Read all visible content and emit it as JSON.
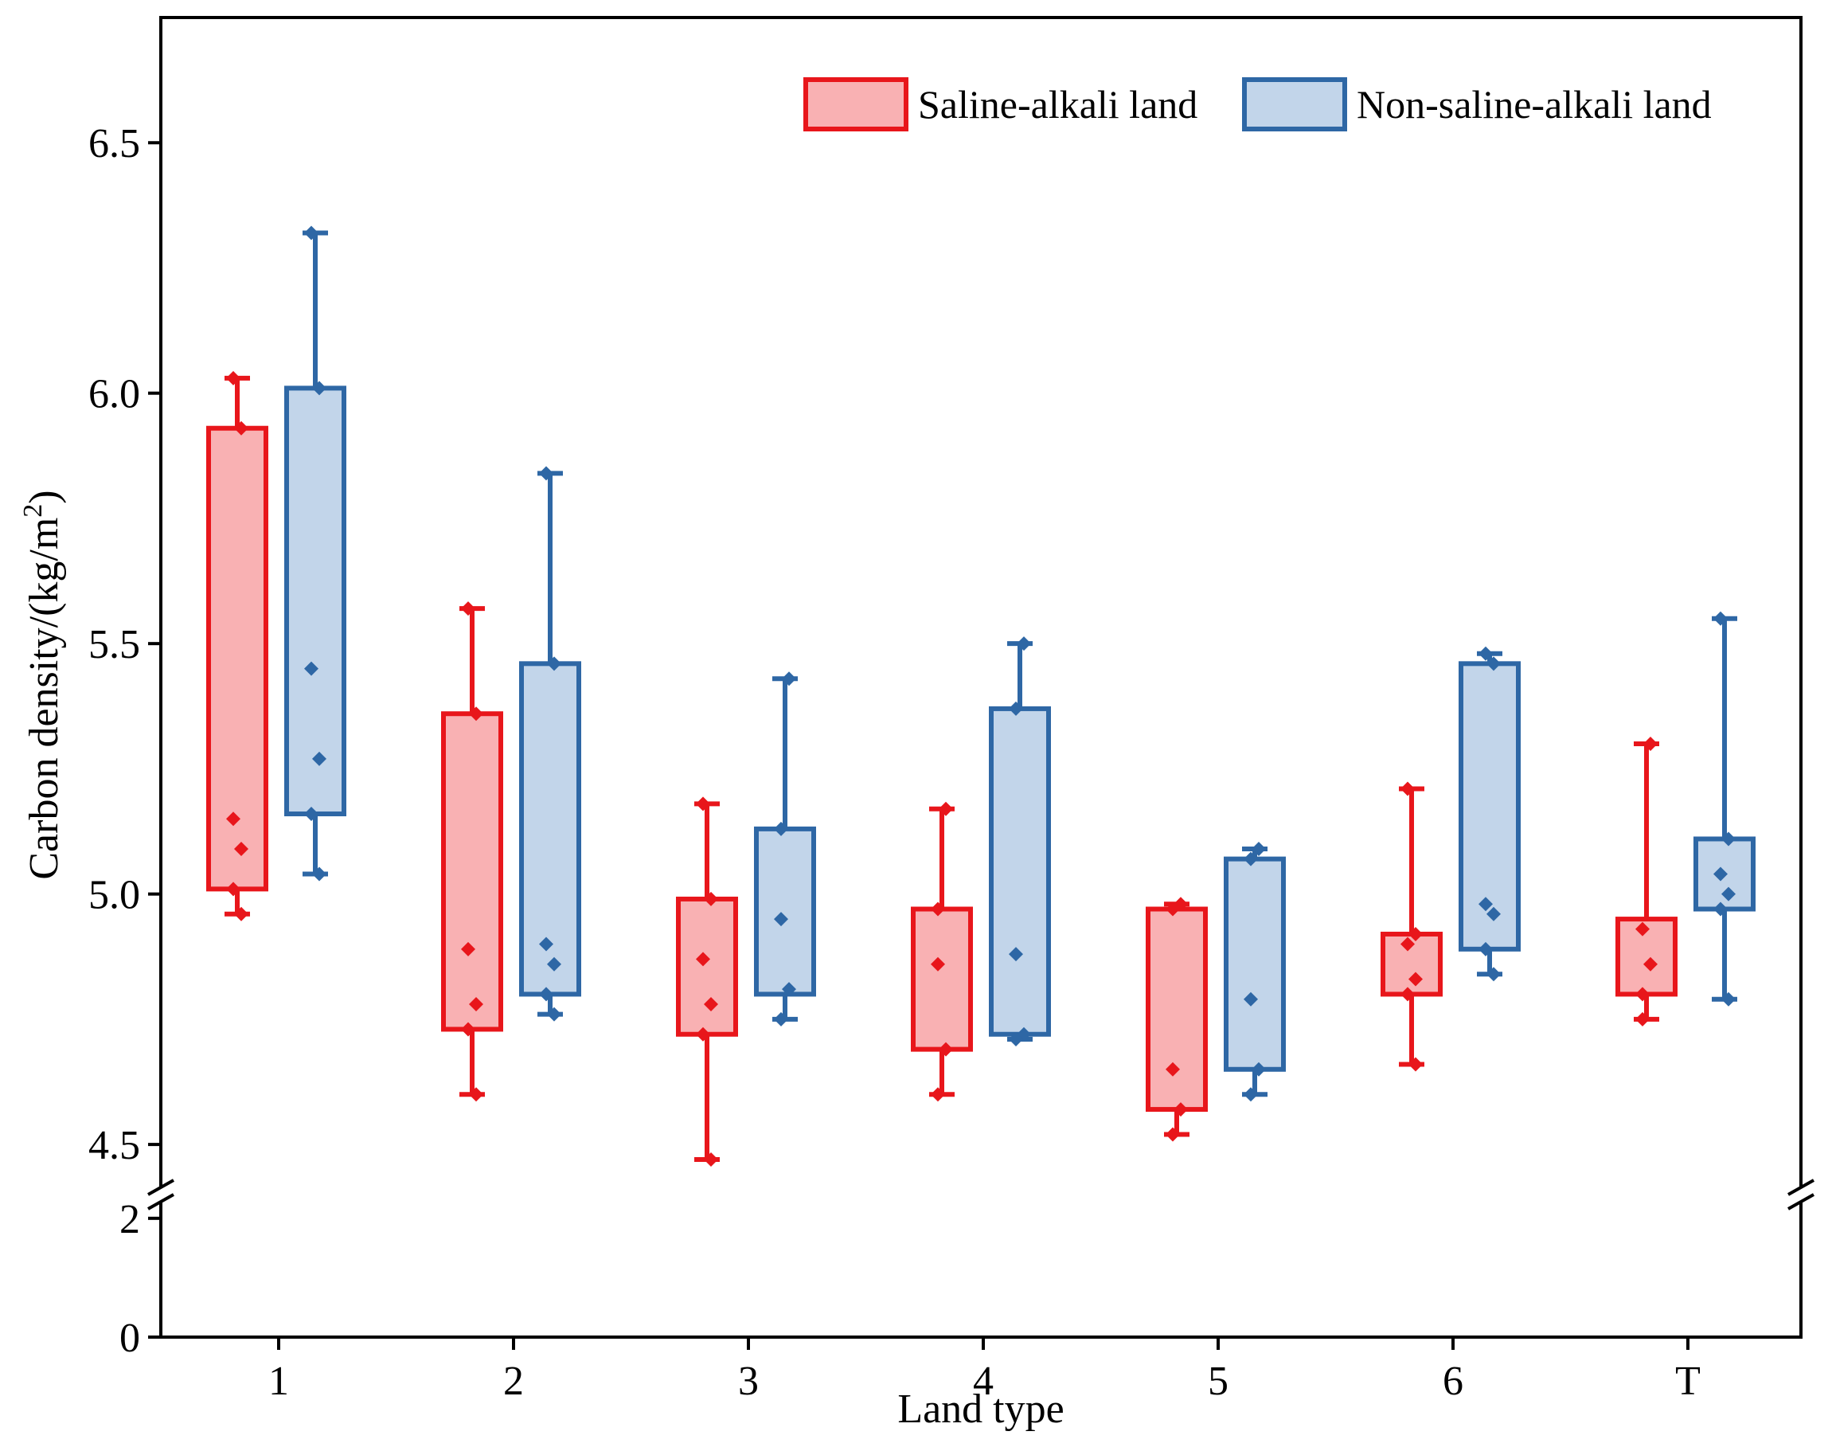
{
  "chart_data": {
    "type": "box",
    "xlabel": "Land type",
    "ylabel": "Carbon density/(kg/m",
    "ylabel_superscript": "2",
    "ylabel_suffix": ")",
    "categories": [
      "1",
      "2",
      "3",
      "4",
      "5",
      "6",
      "T"
    ],
    "y_ticks_upper": [
      "4.5",
      "5.0",
      "5.5",
      "6.0",
      "6.5"
    ],
    "y_ticks_lower": [
      "0",
      "2"
    ],
    "ylim_upper": [
      4.4,
      6.75
    ],
    "ylim_lower": [
      0,
      2.4
    ],
    "axis_break": true,
    "legend_position": "top-right",
    "series": [
      {
        "name": "Saline-alkali land",
        "color": "#e8161b",
        "fill": "#f9b1b3",
        "boxes": [
          {
            "min": 4.96,
            "q1": 5.01,
            "q3": 5.93,
            "max": 6.03,
            "points": [
              5.15,
              5.09,
              5.01,
              5.93,
              6.03,
              4.96
            ]
          },
          {
            "min": 4.6,
            "q1": 4.73,
            "q3": 5.36,
            "max": 5.57,
            "points": [
              4.89,
              4.78,
              4.73,
              5.36,
              5.57,
              4.6
            ]
          },
          {
            "min": 4.47,
            "q1": 4.72,
            "q3": 4.99,
            "max": 5.18,
            "points": [
              4.87,
              4.78,
              4.72,
              4.99,
              5.18,
              4.47
            ]
          },
          {
            "min": 4.6,
            "q1": 4.69,
            "q3": 4.97,
            "max": 5.17,
            "points": [
              4.86,
              4.69,
              4.97,
              5.17,
              4.6
            ]
          },
          {
            "min": 4.52,
            "q1": 4.57,
            "q3": 4.97,
            "max": 4.98,
            "points": [
              4.65,
              4.57,
              4.97,
              4.98,
              4.52
            ]
          },
          {
            "min": 4.66,
            "q1": 4.8,
            "q3": 4.92,
            "max": 5.21,
            "points": [
              4.9,
              4.83,
              4.8,
              4.92,
              5.21,
              4.66
            ]
          },
          {
            "min": 4.75,
            "q1": 4.8,
            "q3": 4.95,
            "max": 5.3,
            "points": [
              4.93,
              4.86,
              4.8,
              5.3,
              4.75
            ]
          }
        ]
      },
      {
        "name": "Non-saline-alkali land",
        "color": "#2e67a5",
        "fill": "#c2d5ea",
        "boxes": [
          {
            "min": 5.04,
            "q1": 5.16,
            "q3": 6.01,
            "max": 6.32,
            "points": [
              5.45,
              5.27,
              5.16,
              6.01,
              6.32,
              5.04
            ]
          },
          {
            "min": 4.76,
            "q1": 4.8,
            "q3": 5.46,
            "max": 5.84,
            "points": [
              4.9,
              4.86,
              4.8,
              5.46,
              5.84,
              4.76
            ]
          },
          {
            "min": 4.75,
            "q1": 4.8,
            "q3": 5.13,
            "max": 5.43,
            "points": [
              4.95,
              4.81,
              5.13,
              5.43,
              4.75
            ]
          },
          {
            "min": 4.71,
            "q1": 4.72,
            "q3": 5.37,
            "max": 5.5,
            "points": [
              4.88,
              4.72,
              5.37,
              5.5,
              4.71
            ]
          },
          {
            "min": 4.6,
            "q1": 4.65,
            "q3": 5.07,
            "max": 5.09,
            "points": [
              4.79,
              4.65,
              5.07,
              5.09,
              4.6
            ]
          },
          {
            "min": 4.84,
            "q1": 4.89,
            "q3": 5.46,
            "max": 5.48,
            "points": [
              4.98,
              4.96,
              4.89,
              5.46,
              5.48,
              4.84
            ]
          },
          {
            "min": 4.79,
            "q1": 4.97,
            "q3": 5.11,
            "max": 5.55,
            "points": [
              5.04,
              5.0,
              4.97,
              5.11,
              5.55,
              4.79
            ]
          }
        ]
      }
    ]
  }
}
